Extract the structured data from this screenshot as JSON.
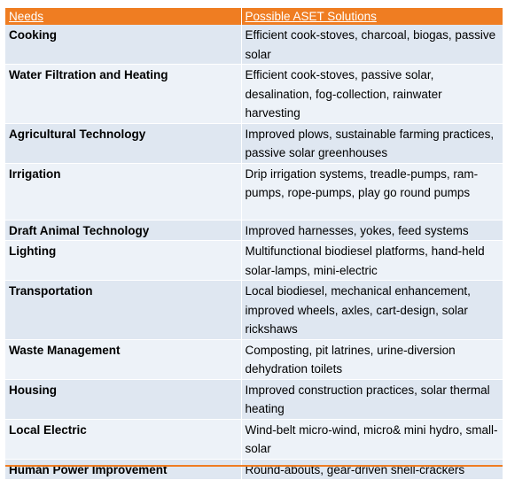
{
  "table": {
    "headers": {
      "needs": "Needs",
      "solutions": "Possible ASET Solutions"
    },
    "rows": [
      {
        "need": "Cooking",
        "solutions": "Efficient cook-stoves, charcoal, biogas, passive solar"
      },
      {
        "need": "Water Filtration and Heating",
        "solutions": "Efficient cook-stoves, passive solar, desalination, fog-collection, rainwater harvesting"
      },
      {
        "need": "Agricultural Technology",
        "solutions": "Improved plows, sustainable farming practices, passive solar greenhouses"
      },
      {
        "need": "Irrigation",
        "solutions": "Drip irrigation systems, treadle-pumps, ram-pumps, rope-pumps, play go round pumps"
      },
      {
        "need": "Draft Animal Technology",
        "solutions": "Improved harnesses, yokes, feed systems"
      },
      {
        "need": "Lighting",
        "solutions": "Multifunctional biodiesel platforms, hand-held solar-lamps, mini-electric"
      },
      {
        "need": "Transportation",
        "solutions": "Local biodiesel, mechanical enhancement, improved wheels, axles, cart-design, solar rickshaws"
      },
      {
        "need": "Waste Management",
        "solutions": "Composting, pit latrines, urine-diversion dehydration toilets"
      },
      {
        "need": "Housing",
        "solutions": "Improved construction practices, solar thermal heating"
      },
      {
        "need": "Local Electric",
        "solutions": "Wind-belt micro-wind, micro& mini hydro, small-solar"
      },
      {
        "need": "Human Power Improvement",
        "solutions": "Round-abouts, gear-driven shell-crackers"
      }
    ]
  }
}
